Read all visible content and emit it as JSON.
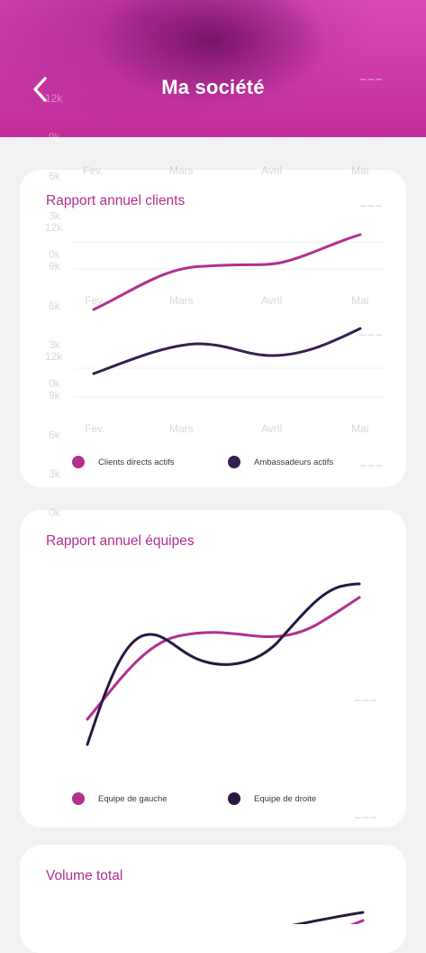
{
  "header": {
    "title": "Ma société",
    "back_icon": "chevron-left-icon",
    "colors": {
      "primary": "#c12e9c",
      "dark": "#6e0f5f"
    }
  },
  "ghost_ticks": {
    "y": [
      "12k",
      "9k",
      "6k",
      "3k",
      "0k"
    ],
    "x": [
      "Fev.",
      "Mars",
      "Avril",
      "Mai"
    ]
  },
  "cards": [
    {
      "title": "Rapport annuel clients",
      "legend": [
        {
          "label": "Clients directs actifs",
          "color": "#b2308f"
        },
        {
          "label": "Ambassadeurs actifs",
          "color": "#35204f"
        }
      ]
    },
    {
      "title": "Rapport annuel équipes",
      "legend": [
        {
          "label": "Equipe de gauche",
          "color": "#b2308f"
        },
        {
          "label": "Equipe de droite",
          "color": "#2a1840"
        }
      ]
    },
    {
      "title": "Volume total"
    }
  ]
}
